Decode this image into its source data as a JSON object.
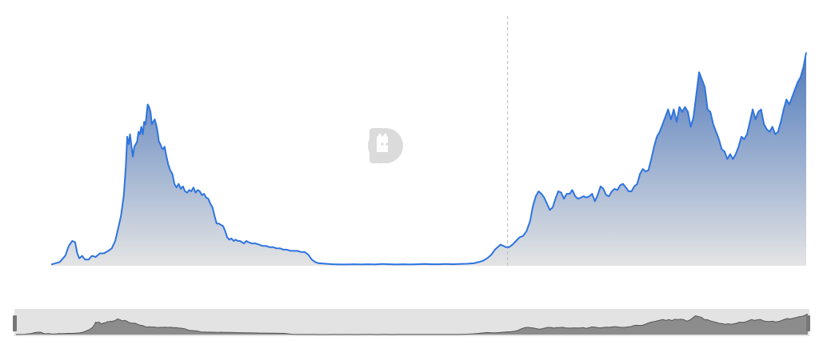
{
  "chart_data": {
    "type": "area",
    "title": "",
    "xlabel": "",
    "ylabel": "",
    "ylim": [
      0,
      100
    ],
    "grid": false,
    "legend": "none",
    "marker_x": 64.8,
    "series": [
      {
        "values": [
          [
            0,
            0.5
          ],
          [
            1.2,
            1.5
          ],
          [
            2.0,
            4.0
          ],
          [
            2.5,
            8.0
          ],
          [
            3.0,
            10.0
          ],
          [
            3.4,
            9.5
          ],
          [
            3.7,
            5.0
          ],
          [
            4.0,
            3.0
          ],
          [
            4.4,
            4.0
          ],
          [
            4.8,
            2.5
          ],
          [
            5.3,
            2.5
          ],
          [
            5.8,
            4.0
          ],
          [
            6.3,
            3.5
          ],
          [
            6.9,
            5.0
          ],
          [
            7.5,
            5.0
          ],
          [
            8.1,
            6.0
          ],
          [
            8.6,
            7.0
          ],
          [
            9.1,
            10.0
          ],
          [
            9.5,
            15.0
          ],
          [
            9.9,
            20.0
          ],
          [
            10.3,
            28.0
          ],
          [
            10.6,
            40.0
          ],
          [
            10.8,
            52.0
          ],
          [
            11.0,
            49.0
          ],
          [
            11.2,
            53.0
          ],
          [
            11.4,
            48.0
          ],
          [
            11.6,
            44.0
          ],
          [
            11.8,
            48.0
          ],
          [
            12.0,
            49.0
          ],
          [
            12.2,
            50.0
          ],
          [
            12.4,
            54.0
          ],
          [
            12.6,
            53.0
          ],
          [
            12.8,
            56.0
          ],
          [
            13.0,
            53.0
          ],
          [
            13.2,
            58.0
          ],
          [
            13.4,
            57.0
          ],
          [
            13.7,
            65.0
          ],
          [
            13.9,
            64.0
          ],
          [
            14.1,
            62.0
          ],
          [
            14.3,
            57.0
          ],
          [
            14.5,
            58.0
          ],
          [
            14.7,
            59.0
          ],
          [
            14.9,
            57.0
          ],
          [
            15.1,
            54.0
          ],
          [
            15.3,
            50.0
          ],
          [
            15.5,
            49.0
          ],
          [
            15.7,
            47.5
          ],
          [
            15.9,
            47.0
          ],
          [
            16.1,
            48.0
          ],
          [
            16.3,
            45.0
          ],
          [
            16.6,
            41.0
          ],
          [
            16.9,
            38.5
          ],
          [
            17.2,
            37.0
          ],
          [
            17.5,
            33.0
          ],
          [
            17.8,
            31.5
          ],
          [
            18.1,
            33.0
          ],
          [
            18.4,
            31.0
          ],
          [
            18.7,
            32.0
          ],
          [
            19.0,
            30.0
          ],
          [
            19.3,
            29.5
          ],
          [
            19.6,
            30.5
          ],
          [
            19.9,
            30.0
          ],
          [
            20.2,
            31.5
          ],
          [
            20.5,
            29.5
          ],
          [
            20.8,
            30.5
          ],
          [
            21.1,
            30.0
          ],
          [
            21.4,
            28.5
          ],
          [
            21.7,
            29.0
          ],
          [
            22.0,
            27.5
          ],
          [
            22.3,
            27.0
          ],
          [
            22.6,
            25.0
          ],
          [
            22.9,
            23.5
          ],
          [
            23.2,
            20.0
          ],
          [
            23.5,
            17.0
          ],
          [
            23.8,
            17.0
          ],
          [
            24.1,
            16.5
          ],
          [
            24.4,
            16.0
          ],
          [
            24.7,
            14.0
          ],
          [
            25.0,
            11.5
          ],
          [
            25.3,
            10.5
          ],
          [
            25.6,
            11.0
          ],
          [
            25.9,
            10.0
          ],
          [
            26.2,
            10.5
          ],
          [
            26.5,
            10.0
          ],
          [
            26.8,
            10.0
          ],
          [
            27.1,
            9.5
          ],
          [
            27.4,
            9.0
          ],
          [
            27.7,
            10.0
          ],
          [
            28.0,
            9.5
          ],
          [
            28.5,
            9.0
          ],
          [
            29.0,
            9.0
          ],
          [
            29.5,
            8.5
          ],
          [
            30.0,
            8.0
          ],
          [
            30.5,
            8.0
          ],
          [
            31.0,
            7.5
          ],
          [
            31.5,
            7.5
          ],
          [
            32.0,
            7.0
          ],
          [
            32.5,
            7.0
          ],
          [
            33.0,
            6.5
          ],
          [
            33.5,
            6.5
          ],
          [
            34.0,
            6.0
          ],
          [
            34.5,
            6.0
          ],
          [
            35.0,
            6.0
          ],
          [
            35.5,
            5.5
          ],
          [
            36.0,
            5.5
          ],
          [
            36.5,
            4.5
          ],
          [
            37.0,
            2.5
          ],
          [
            37.5,
            1.5
          ],
          [
            38.0,
            1.0
          ],
          [
            39.0,
            0.8
          ],
          [
            40.0,
            0.6
          ],
          [
            41.0,
            0.5
          ],
          [
            42.0,
            0.5
          ],
          [
            43.0,
            0.6
          ],
          [
            44.0,
            0.5
          ],
          [
            45.0,
            0.6
          ],
          [
            46.0,
            0.5
          ],
          [
            47.0,
            0.7
          ],
          [
            48.0,
            0.6
          ],
          [
            49.0,
            0.5
          ],
          [
            50.0,
            0.6
          ],
          [
            51.0,
            0.5
          ],
          [
            52.0,
            0.6
          ],
          [
            53.0,
            0.7
          ],
          [
            54.0,
            0.6
          ],
          [
            55.0,
            0.6
          ],
          [
            56.0,
            0.7
          ],
          [
            57.0,
            0.6
          ],
          [
            58.0,
            0.7
          ],
          [
            59.0,
            0.8
          ],
          [
            60.0,
            1.0
          ],
          [
            60.7,
            1.5
          ],
          [
            61.3,
            2.0
          ],
          [
            61.9,
            3.0
          ],
          [
            62.5,
            4.5
          ],
          [
            63.0,
            6.5
          ],
          [
            63.4,
            7.5
          ],
          [
            63.8,
            8.5
          ],
          [
            64.2,
            8.0
          ],
          [
            64.6,
            7.5
          ],
          [
            65.0,
            7.5
          ],
          [
            65.5,
            8.5
          ],
          [
            66.0,
            10.0
          ],
          [
            66.5,
            11.5
          ],
          [
            67.0,
            12.0
          ],
          [
            67.5,
            14.0
          ],
          [
            68.0,
            18.0
          ],
          [
            68.4,
            24.0
          ],
          [
            68.8,
            28.0
          ],
          [
            69.2,
            30.0
          ],
          [
            69.6,
            29.0
          ],
          [
            70.0,
            27.5
          ],
          [
            70.4,
            25.0
          ],
          [
            70.8,
            22.5
          ],
          [
            71.2,
            23.5
          ],
          [
            71.6,
            27.0
          ],
          [
            72.0,
            30.0
          ],
          [
            72.4,
            29.5
          ],
          [
            72.8,
            27.0
          ],
          [
            73.2,
            29.0
          ],
          [
            73.6,
            29.0
          ],
          [
            74.0,
            30.5
          ],
          [
            74.4,
            28.0
          ],
          [
            74.8,
            27.0
          ],
          [
            75.2,
            27.5
          ],
          [
            75.6,
            28.0
          ],
          [
            76.0,
            27.5
          ],
          [
            76.4,
            28.0
          ],
          [
            76.8,
            29.0
          ],
          [
            77.2,
            26.0
          ],
          [
            77.6,
            28.5
          ],
          [
            78.0,
            32.0
          ],
          [
            78.4,
            31.0
          ],
          [
            78.8,
            28.5
          ],
          [
            79.2,
            28.0
          ],
          [
            79.6,
            30.0
          ],
          [
            80.0,
            31.0
          ],
          [
            80.4,
            30.5
          ],
          [
            80.8,
            32.5
          ],
          [
            81.2,
            33.0
          ],
          [
            81.6,
            31.5
          ],
          [
            82.0,
            30.0
          ],
          [
            82.4,
            30.0
          ],
          [
            82.8,
            32.0
          ],
          [
            83.2,
            33.0
          ],
          [
            83.6,
            37.0
          ],
          [
            84.0,
            39.0
          ],
          [
            84.4,
            38.0
          ],
          [
            84.8,
            38.5
          ],
          [
            85.2,
            43.0
          ],
          [
            85.6,
            48.0
          ],
          [
            86.0,
            52.0
          ],
          [
            86.4,
            54.0
          ],
          [
            86.8,
            57.0
          ],
          [
            87.2,
            60.0
          ],
          [
            87.6,
            63.0
          ],
          [
            88.0,
            59.0
          ],
          [
            88.4,
            63.0
          ],
          [
            88.8,
            58.0
          ],
          [
            89.2,
            64.0
          ],
          [
            89.6,
            62.0
          ],
          [
            90.0,
            64.0
          ],
          [
            90.4,
            62.0
          ],
          [
            90.8,
            56.0
          ],
          [
            91.2,
            60.0
          ],
          [
            91.6,
            69.0
          ],
          [
            92.0,
            78.0
          ],
          [
            92.4,
            75.0
          ],
          [
            92.8,
            72.0
          ],
          [
            93.2,
            63.0
          ],
          [
            93.6,
            62.0
          ],
          [
            94.0,
            57.0
          ],
          [
            94.4,
            54.0
          ],
          [
            94.8,
            51.0
          ],
          [
            95.2,
            47.0
          ],
          [
            95.6,
            46.0
          ],
          [
            96.0,
            43.0
          ],
          [
            96.4,
            45.0
          ],
          [
            96.8,
            43.0
          ],
          [
            97.2,
            45.0
          ],
          [
            97.6,
            48.0
          ],
          [
            98.0,
            52.0
          ],
          [
            98.4,
            51.0
          ],
          [
            98.8,
            53.0
          ],
          [
            99.2,
            58.0
          ],
          [
            99.6,
            63.0
          ],
          [
            100.0,
            59.0
          ],
          [
            100.4,
            62.0
          ],
          [
            100.8,
            63.0
          ],
          [
            101.2,
            57.0
          ],
          [
            101.6,
            55.0
          ],
          [
            102.0,
            54.0
          ],
          [
            102.4,
            56.0
          ],
          [
            102.8,
            53.0
          ],
          [
            103.2,
            54.0
          ],
          [
            103.6,
            58.0
          ],
          [
            104.0,
            63.0
          ],
          [
            104.4,
            67.0
          ],
          [
            104.8,
            65.0
          ],
          [
            105.2,
            68.0
          ],
          [
            105.6,
            71.0
          ],
          [
            106.0,
            74.0
          ],
          [
            106.4,
            76.0
          ],
          [
            106.8,
            80.0
          ],
          [
            107.2,
            86.0
          ]
        ]
      }
    ],
    "colors": {
      "line": "#2f74e0",
      "fill_top": "#4f79bb",
      "fill_bottom": "#e4e4e4",
      "marker_line": "#bbbbbb",
      "navigator_bg": "#e3e3e3",
      "navigator_fill": "#8c8c8c",
      "navigator_line": "#555555",
      "handle": "#777777"
    }
  }
}
